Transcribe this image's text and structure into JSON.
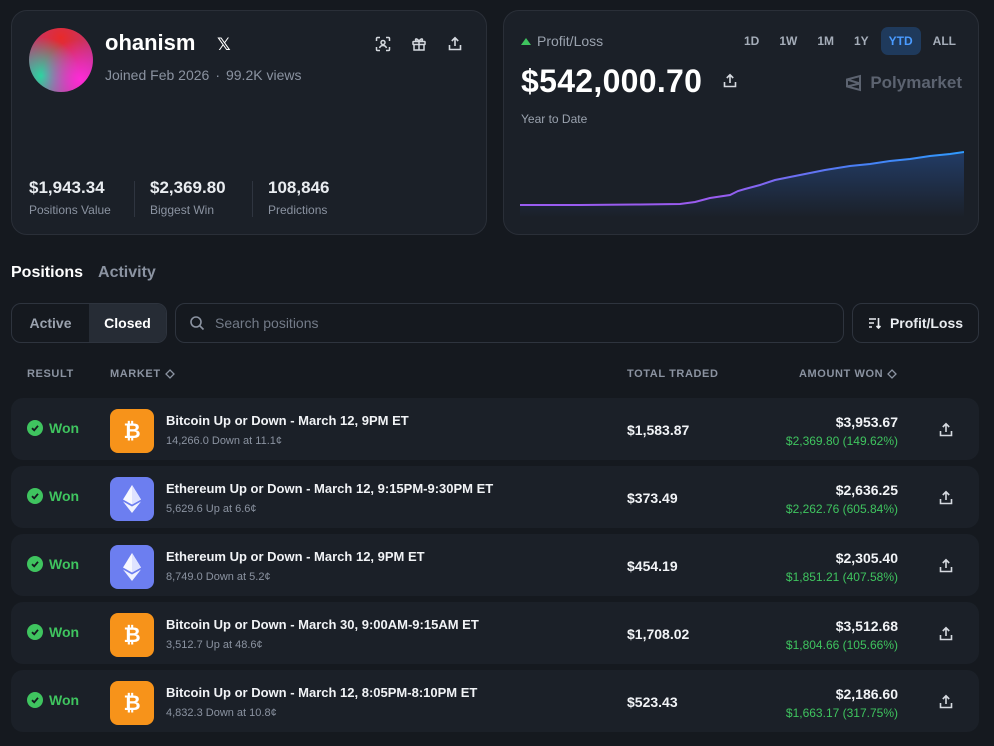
{
  "profile": {
    "username": "ohanism",
    "social_icon": "x-logo-icon",
    "joined": "Joined Feb 2026",
    "views": "99.2K views",
    "stats": [
      {
        "value": "$1,943.34",
        "label": "Positions Value"
      },
      {
        "value": "$2,369.80",
        "label": "Biggest Win"
      },
      {
        "value": "108,846",
        "label": "Predictions"
      }
    ]
  },
  "pnl": {
    "label": "Profit/Loss",
    "ranges": [
      "1D",
      "1W",
      "1M",
      "1Y",
      "YTD",
      "ALL"
    ],
    "active_range": "YTD",
    "value": "$542,000.70",
    "period": "Year to Date",
    "brand": "Polymarket"
  },
  "tabs": {
    "positions": "Positions",
    "activity": "Activity"
  },
  "filters": {
    "active": "Active",
    "closed": "Closed",
    "search_placeholder": "Search positions",
    "sort_label": "Profit/Loss"
  },
  "table": {
    "headers": {
      "result": "RESULT",
      "market": "MARKET",
      "total_traded": "TOTAL TRADED",
      "amount_won": "AMOUNT WON"
    },
    "rows": [
      {
        "result": "Won",
        "coin": "btc",
        "title": "Bitcoin Up or Down - March 12, 9PM ET",
        "sub": "14,266.0 Down at 11.1¢",
        "traded": "$1,583.87",
        "won": "$3,953.67",
        "gain": "$2,369.80 (149.62%)"
      },
      {
        "result": "Won",
        "coin": "eth",
        "title": "Ethereum Up or Down - March 12, 9:15PM-9:30PM ET",
        "sub": "5,629.6 Up at 6.6¢",
        "traded": "$373.49",
        "won": "$2,636.25",
        "gain": "$2,262.76 (605.84%)"
      },
      {
        "result": "Won",
        "coin": "eth",
        "title": "Ethereum Up or Down - March 12, 9PM ET",
        "sub": "8,749.0 Down at 5.2¢",
        "traded": "$454.19",
        "won": "$2,305.40",
        "gain": "$1,851.21 (407.58%)"
      },
      {
        "result": "Won",
        "coin": "btc",
        "title": "Bitcoin Up or Down - March 30, 9:00AM-9:15AM ET",
        "sub": "3,512.7 Up at 48.6¢",
        "traded": "$1,708.02",
        "won": "$3,512.68",
        "gain": "$1,804.66 (105.66%)"
      },
      {
        "result": "Won",
        "coin": "btc",
        "title": "Bitcoin Up or Down - March 12, 8:05PM-8:10PM ET",
        "sub": "4,832.3 Down at 10.8¢",
        "traded": "$523.43",
        "won": "$2,186.60",
        "gain": "$1,663.17 (317.75%)"
      }
    ]
  },
  "colors": {
    "win_green": "#3fc45f",
    "accent_blue": "#4a9bff",
    "btc": "#f7931a",
    "eth": "#6c7ef0"
  }
}
